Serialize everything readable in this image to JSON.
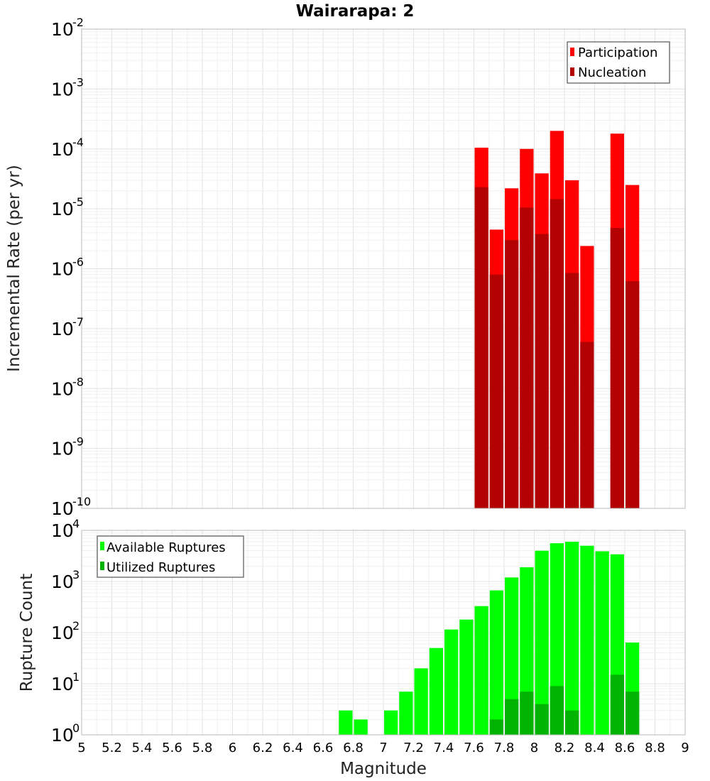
{
  "chart_data": [
    {
      "type": "bar",
      "title": "Wairarapa: 2",
      "xlabel": "",
      "ylabel": "Incremental Rate (per yr)",
      "yscale": "log",
      "ylim_exponents": [
        -10,
        -2
      ],
      "xlim": [
        5,
        9
      ],
      "bin_width": 0.1,
      "legend": {
        "placement": "top-right",
        "entries": [
          "Participation",
          "Nucleation"
        ]
      },
      "colors": {
        "Participation": "#ff0000",
        "Nucleation": "#b30000"
      },
      "series": [
        {
          "name": "Participation",
          "x": [
            7.65,
            7.75,
            7.85,
            7.95,
            8.05,
            8.15,
            8.25,
            8.35,
            8.55,
            8.65
          ],
          "values": [
            0.000105,
            4.5e-06,
            2.2e-05,
            0.0001,
            3.9e-05,
            0.0002,
            3e-05,
            2.4e-06,
            0.00018,
            2.5e-05
          ]
        },
        {
          "name": "Nucleation",
          "x": [
            7.65,
            7.75,
            7.85,
            7.95,
            8.05,
            8.15,
            8.25,
            8.35,
            8.55,
            8.65
          ],
          "values": [
            2.3e-05,
            8e-07,
            3e-06,
            1.05e-05,
            3.8e-06,
            1.45e-05,
            8.5e-07,
            6e-08,
            4.8e-06,
            6.2e-07
          ]
        }
      ]
    },
    {
      "type": "bar",
      "title": "",
      "xlabel": "Magnitude",
      "ylabel": "Rupture Count",
      "yscale": "log",
      "ylim_exponents": [
        0,
        4
      ],
      "xlim": [
        5,
        9
      ],
      "bin_width": 0.1,
      "legend": {
        "placement": "top-left",
        "entries": [
          "Available Ruptures",
          "Utilized Ruptures"
        ]
      },
      "colors": {
        "Available Ruptures": "#00ff00",
        "Utilized Ruptures": "#00b300"
      },
      "series": [
        {
          "name": "Available Ruptures",
          "x": [
            6.75,
            6.85,
            7.05,
            7.15,
            7.25,
            7.35,
            7.45,
            7.55,
            7.65,
            7.75,
            7.85,
            7.95,
            8.05,
            8.15,
            8.25,
            8.35,
            8.45,
            8.55,
            8.65
          ],
          "values": [
            3,
            2,
            3,
            7,
            20,
            50,
            115,
            180,
            330,
            670,
            1200,
            1900,
            4000,
            5600,
            6000,
            5000,
            3900,
            3400,
            64
          ]
        },
        {
          "name": "Utilized Ruptures",
          "x": [
            7.65,
            7.75,
            7.85,
            7.95,
            8.05,
            8.15,
            8.25,
            8.35,
            8.55,
            8.65
          ],
          "values": [
            1,
            2,
            5,
            7,
            4,
            9,
            3,
            1,
            15,
            7
          ]
        }
      ]
    }
  ],
  "x_ticks": [
    "5",
    "5.2",
    "5.4",
    "5.6",
    "5.8",
    "6",
    "6.2",
    "6.4",
    "6.6",
    "6.8",
    "7",
    "7.2",
    "7.4",
    "7.6",
    "7.8",
    "8",
    "8.2",
    "8.4",
    "8.6",
    "8.8",
    "9"
  ],
  "top_y_ticks": [
    {
      "base": "10",
      "exp": "-10"
    },
    {
      "base": "10",
      "exp": "-9"
    },
    {
      "base": "10",
      "exp": "-8"
    },
    {
      "base": "10",
      "exp": "-7"
    },
    {
      "base": "10",
      "exp": "-6"
    },
    {
      "base": "10",
      "exp": "-5"
    },
    {
      "base": "10",
      "exp": "-4"
    },
    {
      "base": "10",
      "exp": "-3"
    },
    {
      "base": "10",
      "exp": "-2"
    }
  ],
  "bottom_y_ticks": [
    {
      "base": "10",
      "exp": "0"
    },
    {
      "base": "10",
      "exp": "1"
    },
    {
      "base": "10",
      "exp": "2"
    },
    {
      "base": "10",
      "exp": "3"
    },
    {
      "base": "10",
      "exp": "4"
    }
  ]
}
